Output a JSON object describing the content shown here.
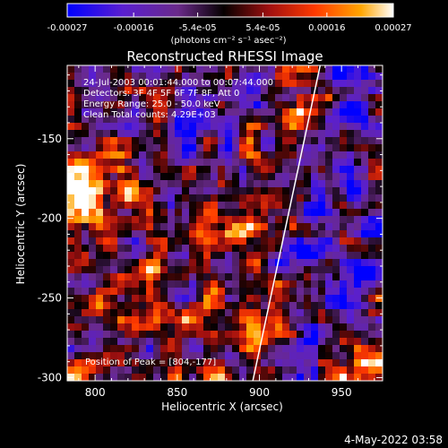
{
  "colorbar": {
    "ticks": [
      "-0.00027",
      "-0.00016",
      "-5.4e-05",
      "5.4e-05",
      "0.00016",
      "0.00027"
    ],
    "unit_label": "(photons cm⁻² s⁻¹ asec⁻²)",
    "range": [
      -0.00027,
      0.00027
    ]
  },
  "chart_data": {
    "type": "heatmap",
    "title": "Reconstructed RHESSI Image",
    "xlabel": "Heliocentric X (arcsec)",
    "ylabel": "Heliocentric Y (arcsec)",
    "xlim": [
      783,
      975
    ],
    "ylim": [
      -302,
      -104
    ],
    "xticks": [
      800,
      850,
      900,
      950
    ],
    "yticks": [
      -150,
      -200,
      -250,
      -300
    ],
    "annotations": [
      "24-Jul-2003 00:01:44.000 to 00:07:44.000",
      "Detectors: 3F 4F 5F 6F 7F 8F, Att 0",
      "Energy Range: 25.0 - 50.0 keV",
      "Clean    Total counts: 4.29E+03"
    ],
    "peak_label": "Position of Peak = [804,-177]",
    "peak_position": [
      804,
      -177
    ],
    "limb_line": [
      [
        896,
        -302
      ],
      [
        937,
        -104
      ]
    ],
    "colormap": "blue-purple-black-red-orange-yellow-white",
    "grid": false
  },
  "footer": {
    "date": "4-May-2022 03:58"
  }
}
